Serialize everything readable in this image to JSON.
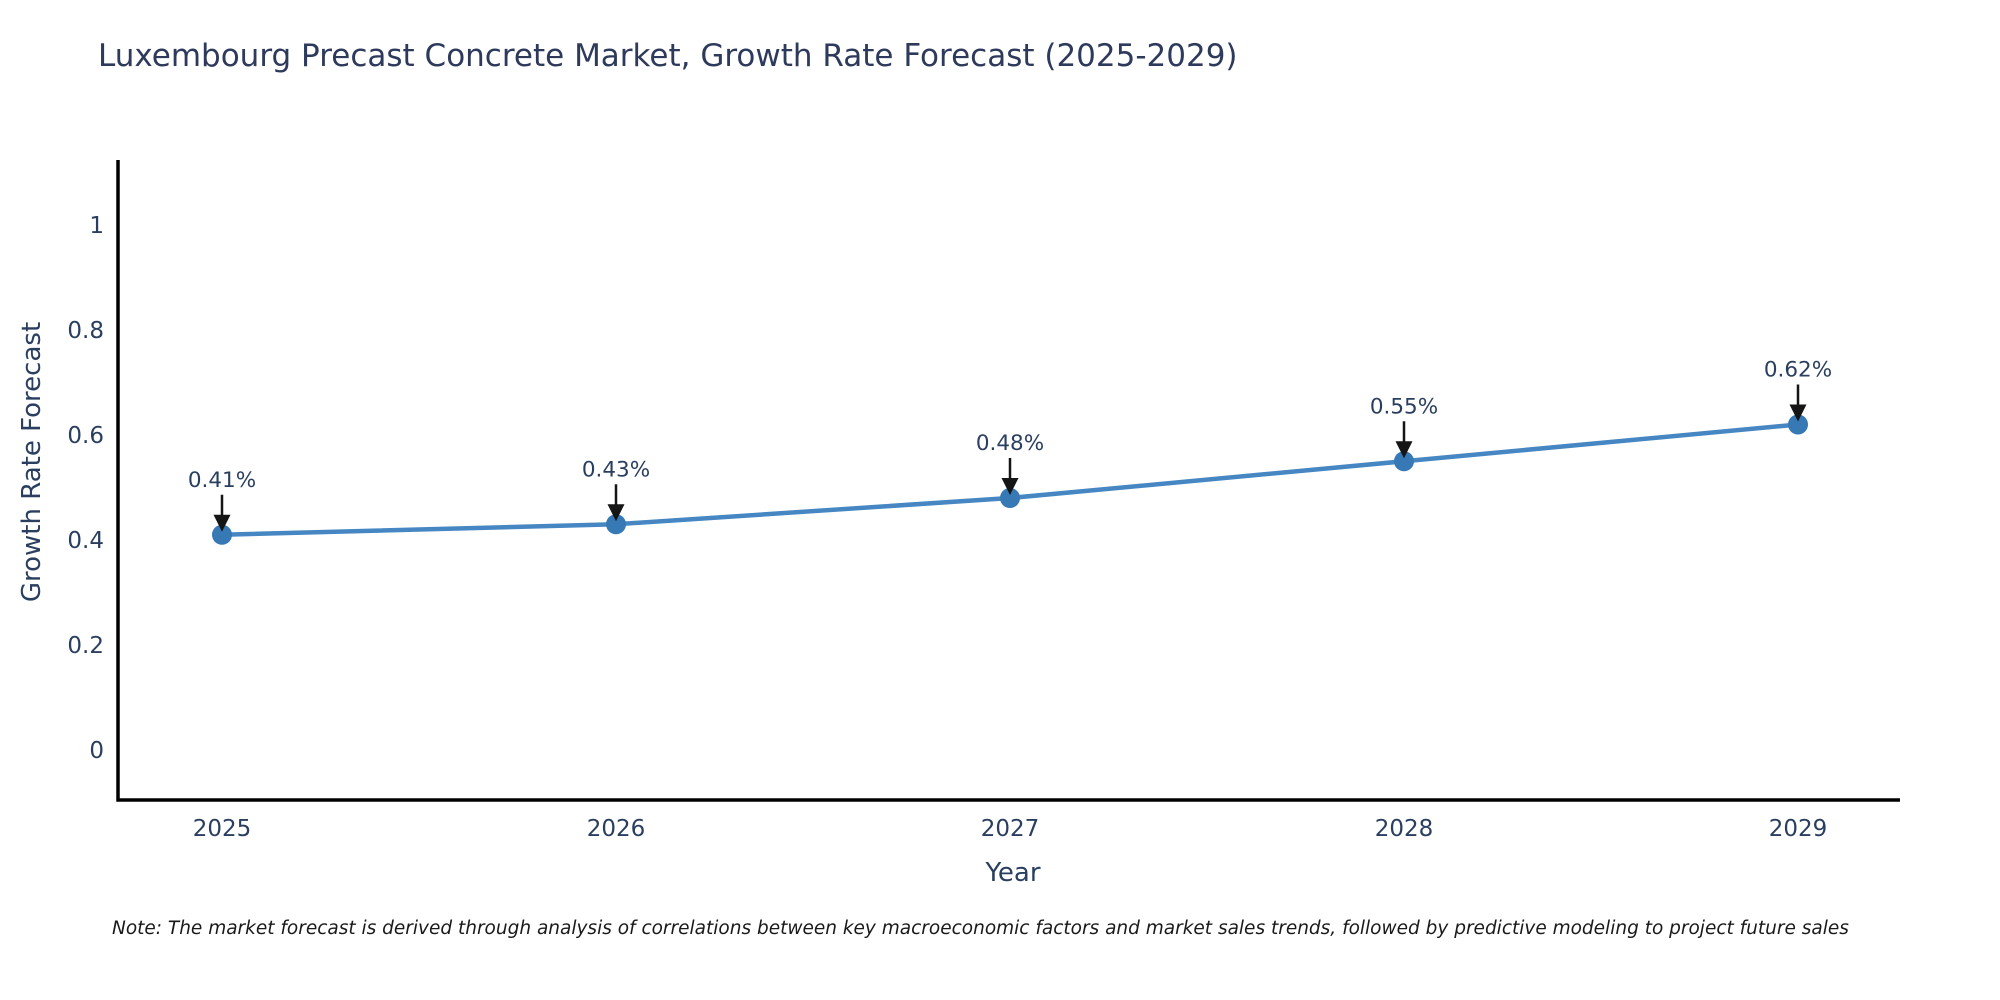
{
  "title": "Luxembourg Precast Concrete Market, Growth Rate Forecast (2025-2029)",
  "note": "Note: The market forecast is derived through analysis of correlations between key macroeconomic factors and market sales trends, followed by predictive modeling to project future sales",
  "chart_data": {
    "type": "line",
    "title": "Luxembourg Precast Concrete Market, Growth Rate Forecast (2025-2029)",
    "xlabel": "Year",
    "ylabel": "Growth Rate Forecast",
    "x": [
      2025,
      2026,
      2027,
      2028,
      2029
    ],
    "y": [
      0.41,
      0.43,
      0.48,
      0.55,
      0.62
    ],
    "point_labels": [
      "0.41%",
      "0.43%",
      "0.48%",
      "0.55%",
      "0.62%"
    ],
    "xtick_labels": [
      "2025",
      "2026",
      "2027",
      "2028",
      "2029"
    ],
    "yticks": [
      0,
      0.2,
      0.4,
      0.6,
      0.8,
      1
    ],
    "ytick_labels": [
      "0",
      "0.2",
      "0.4",
      "0.6",
      "0.8",
      "1"
    ],
    "xlim": [
      2024.74,
      2029.26
    ],
    "ylim": [
      -0.095,
      1.124
    ],
    "grid": false,
    "legend": false,
    "colors": {
      "line": "#4687c3",
      "marker": "#3679b4",
      "axis": "#000000",
      "tick_text": "#2a3f5f",
      "annotation_text": "#2a3f5f",
      "annotation_arrow": "#151515"
    }
  }
}
